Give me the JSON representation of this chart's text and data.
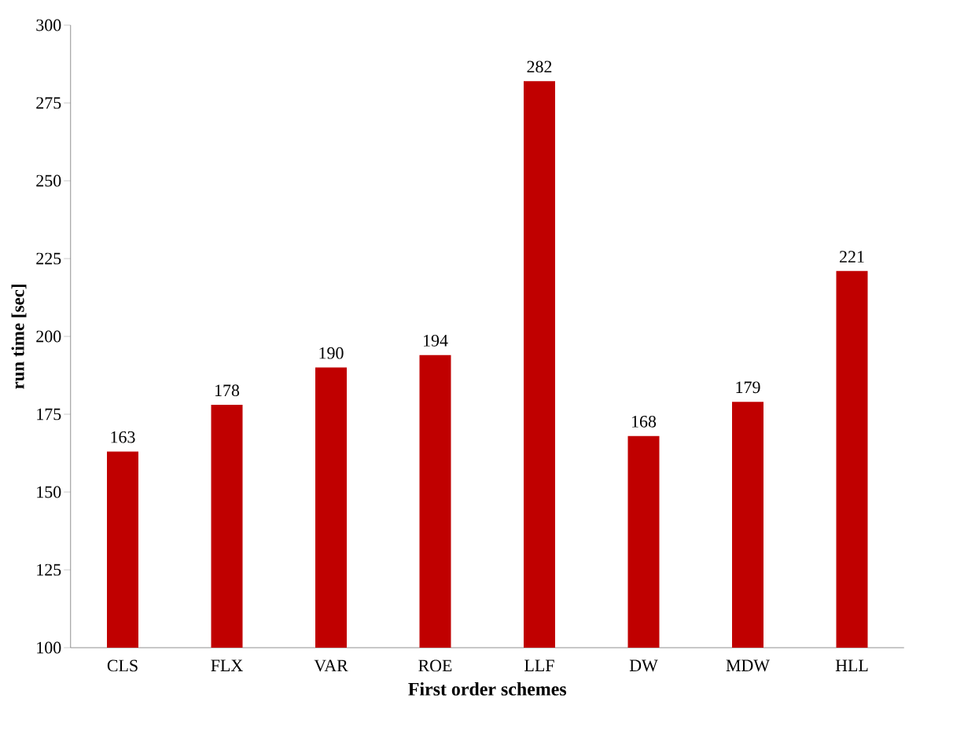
{
  "chart_data": {
    "type": "bar",
    "xlabel": "First order schemes",
    "ylabel": "run time  [sec]",
    "categories": [
      "CLS",
      "FLX",
      "VAR",
      "ROE",
      "LLF",
      "DW",
      "MDW",
      "HLL"
    ],
    "values": [
      163,
      178,
      190,
      194,
      282,
      168,
      179,
      221
    ],
    "color": "#c00000",
    "ylim": [
      100,
      300
    ],
    "yticks": [
      100,
      125,
      150,
      175,
      200,
      225,
      250,
      275,
      300
    ],
    "data_labels": true,
    "grid": false
  }
}
